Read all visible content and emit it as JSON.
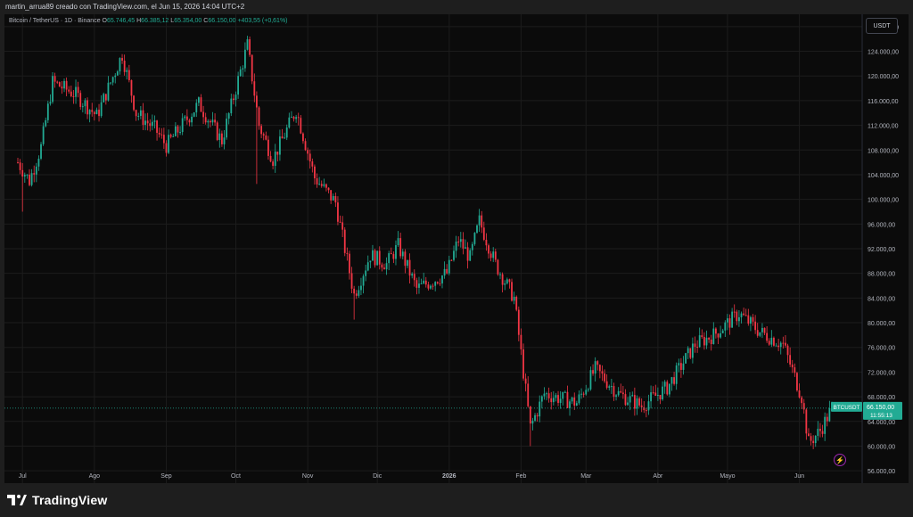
{
  "header": {
    "attribution": "martin_arrua89 creado con TradingView.com, el Jun 15, 2026 14:04 UTC+2"
  },
  "legend": {
    "symbol": "Bitcoin / TetherUS · 1D · Binance",
    "o_label": "O",
    "o_value": "65.746,45",
    "h_label": "H",
    "h_value": "66.385,12",
    "l_label": "L",
    "l_value": "65.354,00",
    "c_label": "C",
    "c_value": "66.150,00",
    "change": "+403,55 (+0,61%)"
  },
  "currency_button": "USDT",
  "price_badge": {
    "symbol": "BTCUSDT",
    "price": "66.150,00",
    "countdown": "11:55:13"
  },
  "footer": {
    "brand": "TradingView"
  },
  "colors": {
    "up": "#22ab94",
    "down": "#f23645",
    "background": "#0b0b0b",
    "grid": "#1c1c1c",
    "axis_text": "#b2b5be"
  },
  "chart_data": {
    "type": "candlestick",
    "symbol": "BTCUSDT",
    "y_axis": {
      "min": 54000,
      "max": 130000,
      "ticks": [
        "128.000,00",
        "124.000,00",
        "120.000,00",
        "116.000,00",
        "112.000,00",
        "108.000,00",
        "104.000,00",
        "100.000,00",
        "96.000,00",
        "92.000,00",
        "88.000,00",
        "84.000,00",
        "80.000,00",
        "76.000,00",
        "72.000,00",
        "68.000,00",
        "64.000,00",
        "60.000,00",
        "56.000,00"
      ]
    },
    "x_axis": {
      "ticks": [
        "Jul",
        "Ago",
        "Sep",
        "Oct",
        "Nov",
        "Dic",
        "2026",
        "Feb",
        "Mar",
        "Abr",
        "Mayo",
        "Jun"
      ]
    },
    "last_price": 66150,
    "close_path": [
      {
        "date": "2025-06-29",
        "close": 106000
      },
      {
        "date": "2025-07-04",
        "close": 103000
      },
      {
        "date": "2025-07-09",
        "close": 108500
      },
      {
        "date": "2025-07-14",
        "close": 119000
      },
      {
        "date": "2025-07-19",
        "close": 118000
      },
      {
        "date": "2025-07-24",
        "close": 117000
      },
      {
        "date": "2025-08-02",
        "close": 113500
      },
      {
        "date": "2025-08-13",
        "close": 123500
      },
      {
        "date": "2025-08-19",
        "close": 114000
      },
      {
        "date": "2025-08-27",
        "close": 111500
      },
      {
        "date": "2025-09-01",
        "close": 108700
      },
      {
        "date": "2025-09-15",
        "close": 115500
      },
      {
        "date": "2025-09-25",
        "close": 109500
      },
      {
        "date": "2025-10-06",
        "close": 125000
      },
      {
        "date": "2025-10-11",
        "close": 112000
      },
      {
        "date": "2025-10-17",
        "close": 106500
      },
      {
        "date": "2025-10-27",
        "close": 114500
      },
      {
        "date": "2025-11-04",
        "close": 103500
      },
      {
        "date": "2025-11-13",
        "close": 99500
      },
      {
        "date": "2025-11-21",
        "close": 84500
      },
      {
        "date": "2025-11-28",
        "close": 91000
      },
      {
        "date": "2025-12-05",
        "close": 89500
      },
      {
        "date": "2025-12-10",
        "close": 92500
      },
      {
        "date": "2025-12-18",
        "close": 85500
      },
      {
        "date": "2025-12-31",
        "close": 88000
      },
      {
        "date": "2026-01-05",
        "close": 93500
      },
      {
        "date": "2026-01-10",
        "close": 90500
      },
      {
        "date": "2026-01-14",
        "close": 96500
      },
      {
        "date": "2026-01-21",
        "close": 89500
      },
      {
        "date": "2026-01-29",
        "close": 84000
      },
      {
        "date": "2026-02-05",
        "close": 63000
      },
      {
        "date": "2026-02-11",
        "close": 68500
      },
      {
        "date": "2026-02-25",
        "close": 67000
      },
      {
        "date": "2026-03-05",
        "close": 72500
      },
      {
        "date": "2026-03-15",
        "close": 68500
      },
      {
        "date": "2026-03-25",
        "close": 66500
      },
      {
        "date": "2026-04-05",
        "close": 69500
      },
      {
        "date": "2026-04-17",
        "close": 76500
      },
      {
        "date": "2026-04-25",
        "close": 78000
      },
      {
        "date": "2026-05-06",
        "close": 81500
      },
      {
        "date": "2026-05-15",
        "close": 78500
      },
      {
        "date": "2026-05-25",
        "close": 76500
      },
      {
        "date": "2026-06-02",
        "close": 68000
      },
      {
        "date": "2026-06-05",
        "close": 60500
      },
      {
        "date": "2026-06-10",
        "close": 62500
      },
      {
        "date": "2026-06-15",
        "close": 66150
      }
    ],
    "spikes": [
      {
        "date": "2025-07-01",
        "low": 98000
      },
      {
        "date": "2025-10-10",
        "low": 102500
      },
      {
        "date": "2025-11-21",
        "low": 80500
      },
      {
        "date": "2026-02-05",
        "low": 60000
      },
      {
        "date": "2026-06-07",
        "low": 59500
      }
    ]
  }
}
